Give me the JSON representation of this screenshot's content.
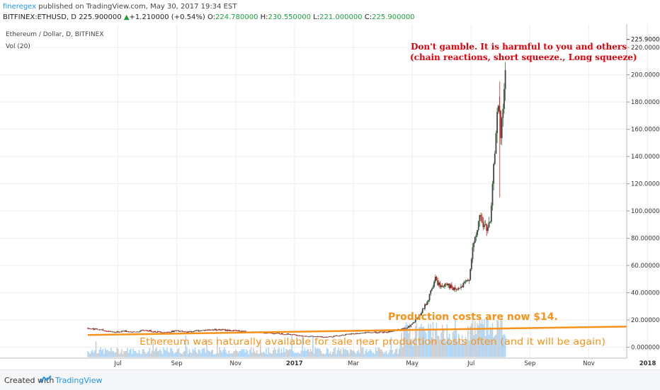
{
  "header": {
    "author": "fineregex",
    "published": " published on TradingView.com, May 30, 2017 19:34 EST",
    "symbol": "BITFINEX:ETHUSD, D ",
    "price": "225.900000",
    "change_arrow": "▲",
    "change": "+1.210000 (+0.54%)",
    "o_label": " O:",
    "o": "224.780000",
    "h_label": " H:",
    "h": "230.550000",
    "l_label": " L:",
    "l": "221.000000",
    "c_label": " C:",
    "c": "225.900000"
  },
  "footer": {
    "created_with": "Created with",
    "brand": "TradingView"
  },
  "colors": {
    "up": "#2e7d32",
    "down": "#c62828",
    "candle_body": "#444444",
    "volume": "#90caf9",
    "volume_grey": "#bdbdbd",
    "trendline": "#f7931a",
    "annotation_red": "#e0000a",
    "annotation_orange": "#f7931a",
    "grid": "#eeeeee"
  },
  "chart_data": {
    "type": "candlestick",
    "title": "Ethereum / Dollar, D, BITFINEX",
    "indicator": "Vol (20)",
    "x_ticks": [
      "Jul",
      "Sep",
      "Nov",
      "2017",
      "Mar",
      "May",
      "Jul",
      "Sep",
      "Nov",
      "2018"
    ],
    "y_ticks": [
      "0.000000",
      "20.000000",
      "40.000000",
      "60.000000",
      "80.000000",
      "100.000000",
      "120.000000",
      "140.000000",
      "160.000000",
      "180.000000",
      "200.000000",
      "220.000000"
    ],
    "ylim": [
      -8,
      232
    ],
    "last_price": "225.900000",
    "last_price_value": 225.9,
    "x_range_months": [
      5.0,
      20.0
    ],
    "price_path": [
      [
        5.0,
        14
      ],
      [
        5.3,
        13
      ],
      [
        5.5,
        12
      ],
      [
        5.8,
        11
      ],
      [
        6.0,
        12
      ],
      [
        6.3,
        11
      ],
      [
        6.6,
        12.5
      ],
      [
        6.9,
        11.5
      ],
      [
        7.2,
        11
      ],
      [
        7.5,
        12
      ],
      [
        7.8,
        11
      ],
      [
        8.0,
        12
      ],
      [
        8.3,
        12.5
      ],
      [
        8.6,
        13
      ],
      [
        8.9,
        12.5
      ],
      [
        9.2,
        12
      ],
      [
        9.5,
        11.5
      ],
      [
        9.8,
        11
      ],
      [
        10.1,
        10.5
      ],
      [
        10.4,
        10
      ],
      [
        10.7,
        9.5
      ],
      [
        11.0,
        8.5
      ],
      [
        11.3,
        8
      ],
      [
        11.6,
        7.5
      ],
      [
        11.9,
        8
      ],
      [
        12.2,
        9
      ],
      [
        12.5,
        10
      ],
      [
        12.8,
        10.5
      ],
      [
        13.1,
        11
      ],
      [
        13.4,
        11
      ],
      [
        13.7,
        12.5
      ],
      [
        14.0,
        14
      ],
      [
        14.2,
        18
      ],
      [
        14.4,
        25
      ],
      [
        14.6,
        35
      ],
      [
        14.7,
        43
      ],
      [
        14.8,
        50
      ],
      [
        14.9,
        46
      ],
      [
        15.0,
        44
      ],
      [
        15.1,
        48
      ],
      [
        15.2,
        45
      ],
      [
        15.3,
        42
      ],
      [
        15.5,
        43
      ],
      [
        15.65,
        47
      ],
      [
        15.75,
        50
      ],
      [
        15.85,
        72
      ],
      [
        15.95,
        80
      ],
      [
        16.05,
        97
      ],
      [
        16.15,
        90
      ],
      [
        16.25,
        87
      ],
      [
        16.35,
        90
      ],
      [
        16.45,
        130
      ],
      [
        16.55,
        180
      ],
      [
        16.6,
        172
      ],
      [
        16.65,
        150
      ],
      [
        16.72,
        180
      ],
      [
        16.78,
        205
      ],
      [
        16.82,
        226
      ]
    ],
    "volume_level": 1,
    "trendline": {
      "x": [
        5.0,
        20.0
      ],
      "y": [
        9,
        15.2
      ]
    },
    "annotations": [
      {
        "text": "Don't gamble. It is harmful to you and others",
        "color": "red"
      },
      {
        "text": "(chain reactions, short squeeze., Long squeeze)",
        "color": "red"
      },
      {
        "text": "Production costs are now $14.",
        "color": "orange"
      },
      {
        "text": "Ethereum  was naturally  available for sale near production costs often (and it will be again)",
        "color": "orange"
      }
    ]
  }
}
